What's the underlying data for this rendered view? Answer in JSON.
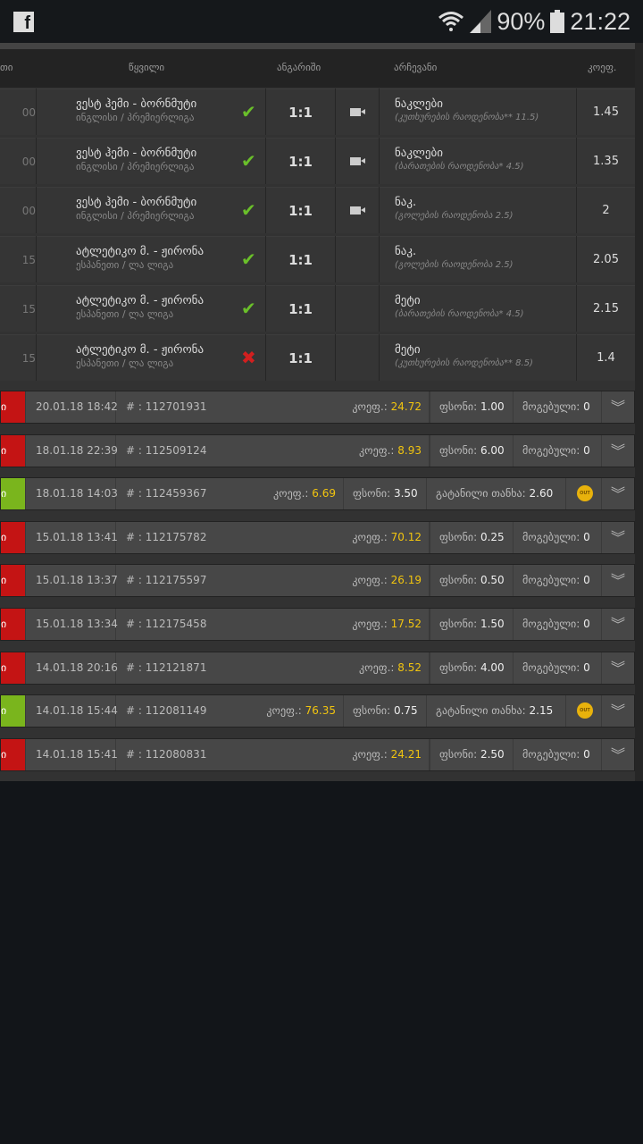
{
  "status_bar": {
    "app_icon": "facebook-icon",
    "battery": "90%",
    "time": "21:22",
    "icons": [
      "wifi-icon",
      "signal-icon",
      "battery-icon"
    ]
  },
  "table_header": {
    "col0": "თი",
    "match": "წყვილი",
    "score": "ანგარიში",
    "pick": "არჩევანი",
    "odds": "კოეფ."
  },
  "colors": {
    "won": "#7ab51d",
    "lost": "#c41414",
    "highlight": "#f1c40f",
    "check": "#6abf2a",
    "cross": "#d21f1f"
  },
  "matches": [
    {
      "lead": "00",
      "title": "ვესტ ჰემი - ბორნმუტი",
      "league": "ინგლისი / პრემიერლიგა",
      "result": "won",
      "score": "1:1",
      "video": true,
      "pick": "ნაკლები",
      "market": "(კუთხურების რაოდენობა** 11.5)",
      "odds": "1.45"
    },
    {
      "lead": "00",
      "title": "ვესტ ჰემი - ბორნმუტი",
      "league": "ინგლისი / პრემიერლიგა",
      "result": "won",
      "score": "1:1",
      "video": true,
      "pick": "ნაკლები",
      "market": "(ბარათების რაოდენობა* 4.5)",
      "odds": "1.35"
    },
    {
      "lead": "00",
      "title": "ვესტ ჰემი - ბორნმუტი",
      "league": "ინგლისი / პრემიერლიგა",
      "result": "won",
      "score": "1:1",
      "video": true,
      "pick": "ნაკ.",
      "market": "(გოლების რაოდენობა 2.5)",
      "odds": "2"
    },
    {
      "lead": "15",
      "title": "ატლეტიკო მ. - ჟირონა",
      "league": "ესპანეთი / ლა ლიგა",
      "result": "won",
      "score": "1:1",
      "video": false,
      "pick": "ნაკ.",
      "market": "(გოლების რაოდენობა 2.5)",
      "odds": "2.05"
    },
    {
      "lead": "15",
      "title": "ატლეტიკო მ. - ჟირონა",
      "league": "ესპანეთი / ლა ლიგა",
      "result": "won",
      "score": "1:1",
      "video": false,
      "pick": "მეტი",
      "market": "(ბარათების რაოდენობა* 4.5)",
      "odds": "2.15"
    },
    {
      "lead": "15",
      "title": "ატლეტიკო მ. - ჟირონა",
      "league": "ესპანეთი / ლა ლიგა",
      "result": "lost",
      "score": "1:1",
      "video": false,
      "pick": "მეტი",
      "market": "(კუთხურების რაოდენობა** 8.5)",
      "odds": "1.4"
    }
  ],
  "labels": {
    "status_tail": "ი",
    "id_prefix": "# : ",
    "odds": "კოეფ.:",
    "stake": "ფსონი:",
    "won": "მოგებული:",
    "cashout": "გატანილი თანხა:",
    "out_badge": "OUT"
  },
  "bets": [
    {
      "status": "lost",
      "date": "20.01.18 18:42",
      "id": "112701931",
      "odds": "24.72",
      "stake": "1.00",
      "won": "0"
    },
    {
      "status": "lost",
      "date": "18.01.18 22:39",
      "id": "112509124",
      "odds": "8.93",
      "stake": "6.00",
      "won": "0"
    },
    {
      "status": "won",
      "date": "18.01.18 14:03",
      "id": "112459367",
      "odds": "6.69",
      "stake": "3.50",
      "cashout": "2.60"
    },
    {
      "status": "lost",
      "date": "15.01.18 13:41",
      "id": "112175782",
      "odds": "70.12",
      "stake": "0.25",
      "won": "0"
    },
    {
      "status": "lost",
      "date": "15.01.18 13:37",
      "id": "112175597",
      "odds": "26.19",
      "stake": "0.50",
      "won": "0"
    },
    {
      "status": "lost",
      "date": "15.01.18 13:34",
      "id": "112175458",
      "odds": "17.52",
      "stake": "1.50",
      "won": "0"
    },
    {
      "status": "lost",
      "date": "14.01.18 20:16",
      "id": "112121871",
      "odds": "8.52",
      "stake": "4.00",
      "won": "0"
    },
    {
      "status": "won",
      "date": "14.01.18 15:44",
      "id": "112081149",
      "odds": "76.35",
      "stake": "0.75",
      "cashout": "2.15"
    },
    {
      "status": "lost",
      "date": "14.01.18 15:41",
      "id": "112080831",
      "odds": "24.21",
      "stake": "2.50",
      "won": "0"
    }
  ]
}
